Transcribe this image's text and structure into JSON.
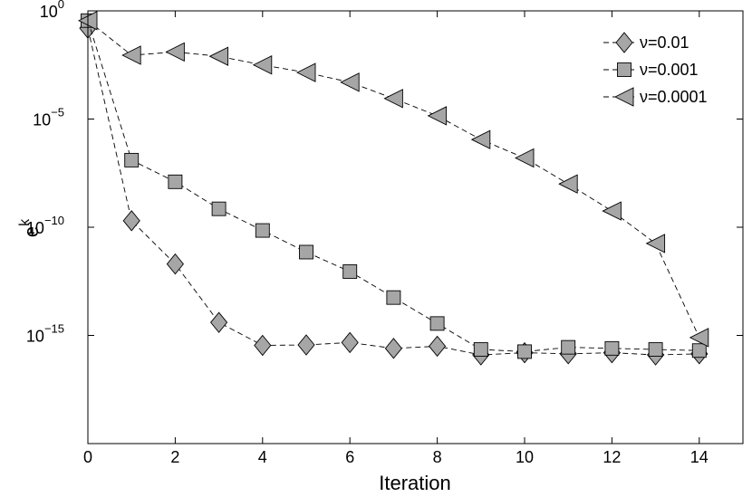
{
  "chart_data": {
    "type": "line",
    "title": "",
    "xlabel": "Iteration",
    "ylabel": "e",
    "ylabel_superscript": "k",
    "yscale": "log",
    "xlim": [
      0,
      15
    ],
    "ylim_exponent": [
      -20,
      0
    ],
    "xticks": [
      "0",
      "2",
      "4",
      "6",
      "8",
      "10",
      "12",
      "14"
    ],
    "yticks": [
      {
        "base": "10",
        "exp": "0"
      },
      {
        "base": "10",
        "exp": "−5"
      },
      {
        "base": "10",
        "exp": "−10"
      },
      {
        "base": "10",
        "exp": "−15"
      }
    ],
    "grid": false,
    "legend_position": "top-right",
    "colors": {
      "marker_fill": "#a6a6a6",
      "marker_stroke": "#000000",
      "line": "#000000"
    },
    "x": [
      0,
      1,
      2,
      3,
      4,
      5,
      6,
      7,
      8,
      9,
      10,
      11,
      12,
      13,
      14
    ],
    "series": [
      {
        "name": "ν=0.01",
        "marker": "diamond",
        "log10_values": [
          -0.8,
          -9.7,
          -11.7,
          -14.4,
          -15.46,
          -15.44,
          -15.33,
          -15.6,
          -15.5,
          -15.9,
          -15.8,
          -15.85,
          -15.8,
          -15.9,
          -15.85
        ]
      },
      {
        "name": "ν=0.001",
        "marker": "square",
        "log10_values": [
          -0.45,
          -6.9,
          -7.9,
          -9.15,
          -10.15,
          -11.15,
          -12.05,
          -13.25,
          -14.45,
          -15.65,
          -15.75,
          -15.55,
          -15.6,
          -15.65,
          -15.7
        ]
      },
      {
        "name": "ν=0.0001",
        "marker": "triangle-left",
        "log10_values": [
          -0.45,
          -2.05,
          -1.9,
          -2.1,
          -2.5,
          -2.85,
          -3.3,
          -4.05,
          -4.85,
          -5.95,
          -6.8,
          -8.0,
          -9.25,
          -10.75,
          -15.1
        ]
      }
    ]
  }
}
